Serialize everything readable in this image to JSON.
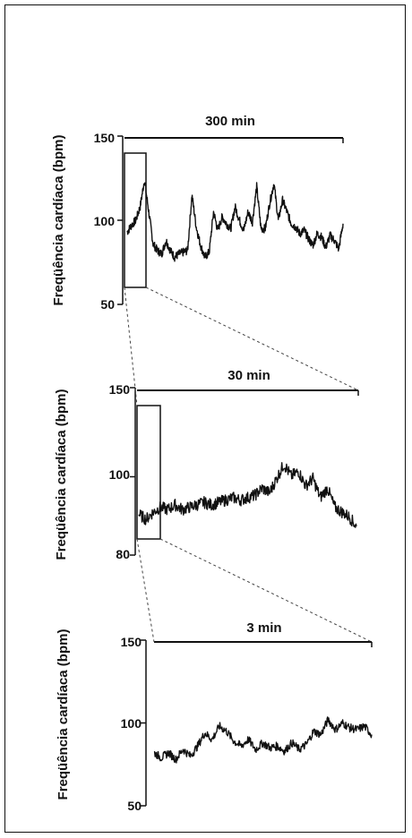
{
  "chart_data": [
    {
      "type": "line",
      "title": "300 min",
      "ylabel": "Freqüência cardíaca (bpm)",
      "yticks": [
        "150",
        "100",
        "50"
      ],
      "ylim": [
        50,
        150
      ],
      "x": [
        0,
        6,
        12,
        18,
        24,
        30,
        36,
        42,
        48,
        54,
        60,
        66,
        72,
        78,
        84,
        90,
        96,
        102,
        108,
        114,
        120,
        126,
        132,
        138,
        144,
        150,
        156,
        162,
        168,
        174,
        180,
        186,
        192,
        198,
        204,
        210,
        216,
        222,
        228,
        234,
        240,
        246,
        252,
        258,
        264,
        270,
        276,
        282,
        288,
        294,
        300
      ],
      "y": [
        93,
        97,
        100,
        108,
        124,
        105,
        86,
        82,
        80,
        88,
        82,
        78,
        80,
        81,
        82,
        115,
        96,
        85,
        78,
        81,
        105,
        94,
        102,
        98,
        95,
        108,
        100,
        94,
        105,
        99,
        120,
        95,
        95,
        110,
        122,
        100,
        112,
        105,
        98,
        96,
        92,
        94,
        89,
        85,
        92,
        90,
        84,
        91,
        88,
        83,
        98
      ]
    },
    {
      "type": "line",
      "title": "30 min",
      "ylabel": "Freqüência cardíaca (bpm)",
      "yticks": [
        "150",
        "100",
        "80"
      ],
      "ylim": [
        80,
        150
      ],
      "x": [
        0,
        1,
        2,
        3,
        4,
        5,
        6,
        7,
        8,
        9,
        10,
        11,
        12,
        13,
        14,
        15,
        16,
        17,
        18,
        19,
        20,
        21,
        22,
        23,
        24,
        25,
        26,
        27,
        28,
        29,
        30
      ],
      "y": [
        97,
        95,
        98,
        100,
        99,
        101,
        99,
        100,
        101,
        102,
        101,
        102,
        103,
        104,
        103,
        104,
        105,
        108,
        106,
        112,
        118,
        113,
        115,
        109,
        112,
        104,
        108,
        100,
        98,
        96,
        92
      ]
    },
    {
      "type": "line",
      "title": "3 min",
      "ylabel": "Freqüência cardíaca (bpm)",
      "yticks": [
        "150",
        "100",
        "50"
      ],
      "ylim": [
        50,
        150
      ],
      "x": [
        0,
        0.1,
        0.2,
        0.3,
        0.4,
        0.5,
        0.6,
        0.7,
        0.8,
        0.9,
        1.0,
        1.1,
        1.2,
        1.3,
        1.4,
        1.5,
        1.6,
        1.7,
        1.8,
        1.9,
        2.0,
        2.1,
        2.2,
        2.3,
        2.4,
        2.5,
        2.6,
        2.7,
        2.8,
        2.9,
        3.0
      ],
      "y": [
        82,
        79,
        82,
        78,
        84,
        80,
        86,
        94,
        90,
        98,
        95,
        89,
        86,
        90,
        84,
        88,
        85,
        86,
        83,
        88,
        84,
        87,
        95,
        93,
        102,
        96,
        100,
        97,
        96,
        98,
        93
      ]
    }
  ]
}
